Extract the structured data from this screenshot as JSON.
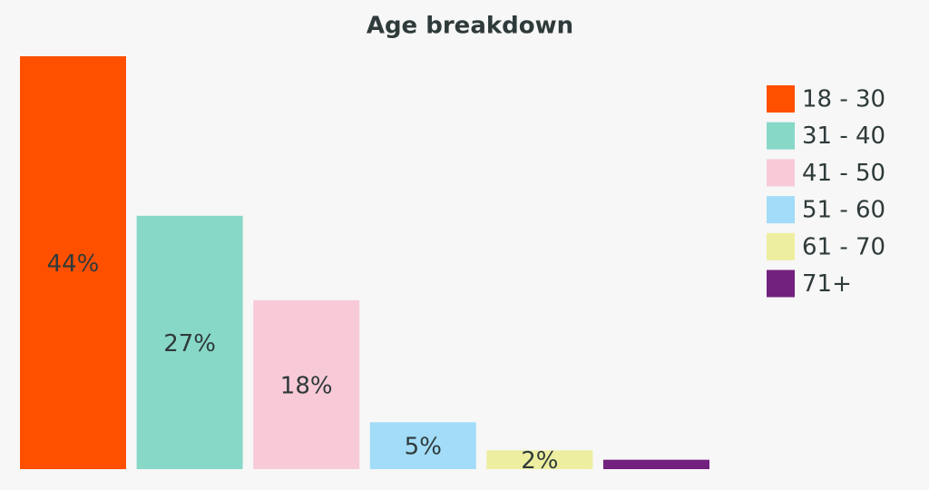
{
  "chart_data": {
    "type": "bar",
    "title": "Age breakdown",
    "categories": [
      "18 - 30",
      "31 - 40",
      "41 - 50",
      "51 - 60",
      "61 - 70",
      "71+"
    ],
    "values": [
      44,
      27,
      18,
      5,
      2,
      1
    ],
    "value_labels": [
      "44%",
      "27%",
      "18%",
      "5%",
      "2%",
      null
    ],
    "colors": [
      "#ff5000",
      "#88d8c8",
      "#f8cad8",
      "#a2dcf8",
      "#eeeea0",
      "#72217e"
    ],
    "legend": "right"
  }
}
